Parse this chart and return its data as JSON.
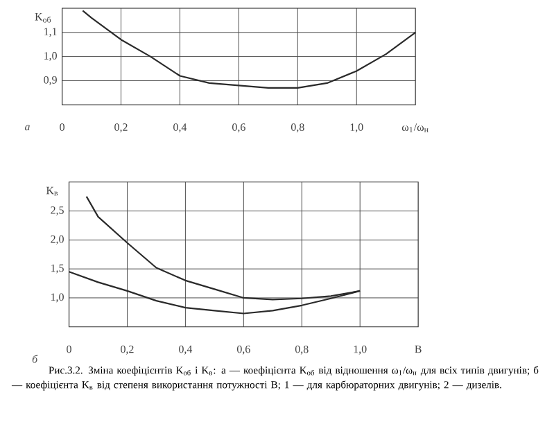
{
  "chart_data": [
    {
      "type": "line",
      "ylabel": "K$_{об}$",
      "xlabel": "ω$_{1}$/ω$_{н}$",
      "xlim": [
        0,
        1.2
      ],
      "ylim": [
        0.8,
        1.2
      ],
      "xticks": [
        0,
        {
          "value": 0.2,
          "label": "0,2"
        },
        {
          "value": 0.4,
          "label": "0,4"
        },
        {
          "value": 0.6,
          "label": "0,6"
        },
        {
          "value": 0.8,
          "label": "0,8"
        },
        {
          "value": 1.0,
          "label": "1,0"
        }
      ],
      "yticks": [
        {
          "value": 0.9,
          "label": "0,9"
        },
        {
          "value": 1.0,
          "label": "1,0"
        },
        {
          "value": 1.1,
          "label": "1,1"
        }
      ],
      "grid": true,
      "marker": "none",
      "line_style": "solid",
      "series": [
        {
          "color": "#2a2a2a",
          "x": [
            0.07,
            0.1,
            0.2,
            0.3,
            0.4,
            0.5,
            0.6,
            0.7,
            0.75,
            0.8,
            0.9,
            1.0,
            1.1,
            1.2
          ],
          "values": [
            1.19,
            1.16,
            1.07,
            1.0,
            0.92,
            0.89,
            0.88,
            0.87,
            0.87,
            0.87,
            0.89,
            0.94,
            1.01,
            1.1
          ]
        }
      ],
      "annotations": [
        "а"
      ]
    },
    {
      "type": "line",
      "ylabel": "K$_{в}$",
      "xlabel": "B",
      "xlim": [
        0,
        1.2
      ],
      "ylim": [
        0.5,
        3.0
      ],
      "xticks": [
        0,
        {
          "value": 0.2,
          "label": "0,2"
        },
        {
          "value": 0.4,
          "label": "0,4"
        },
        {
          "value": 0.6,
          "label": "0,6"
        },
        {
          "value": 0.8,
          "label": "0,8"
        },
        {
          "value": 1.0,
          "label": "1,0"
        }
      ],
      "yticks": [
        {
          "value": 1.0,
          "label": "1,0"
        },
        {
          "value": 1.5,
          "label": "1,5"
        },
        {
          "value": 2.0,
          "label": "2,0"
        },
        {
          "value": 2.5,
          "label": "2,5"
        }
      ],
      "grid": true,
      "marker": "none",
      "line_style": "solid",
      "series": [
        {
          "color": "#2a2a2a",
          "x": [
            0.06,
            0.1,
            0.2,
            0.3,
            0.4,
            0.5,
            0.6,
            0.7,
            0.8,
            0.9,
            1.0
          ],
          "values": [
            2.75,
            2.4,
            1.95,
            1.52,
            1.3,
            1.15,
            1.0,
            0.97,
            0.99,
            1.03,
            1.12
          ]
        },
        {
          "color": "#2a2a2a",
          "x": [
            0,
            0.1,
            0.2,
            0.3,
            0.4,
            0.5,
            0.6,
            0.7,
            0.8,
            0.9,
            1.0
          ],
          "values": [
            1.45,
            1.27,
            1.12,
            0.95,
            0.83,
            0.78,
            0.73,
            0.78,
            0.87,
            0.99,
            1.12
          ]
        }
      ],
      "annotations": [
        "б",
        "Рис.3.2. Зміна коефіцієнтів K$_{об}$ і K$_{в}$: а — коефіцієнта K$_{об}$ від відношення ω$_{1}$/ω$_{н}$ для всіх типів двигунів; б — коефіцієнта K$_{в}$ від степеня використання потужності B; 1 — для карбюраторних двигунів; 2 — дизелів."
      ]
    }
  ]
}
